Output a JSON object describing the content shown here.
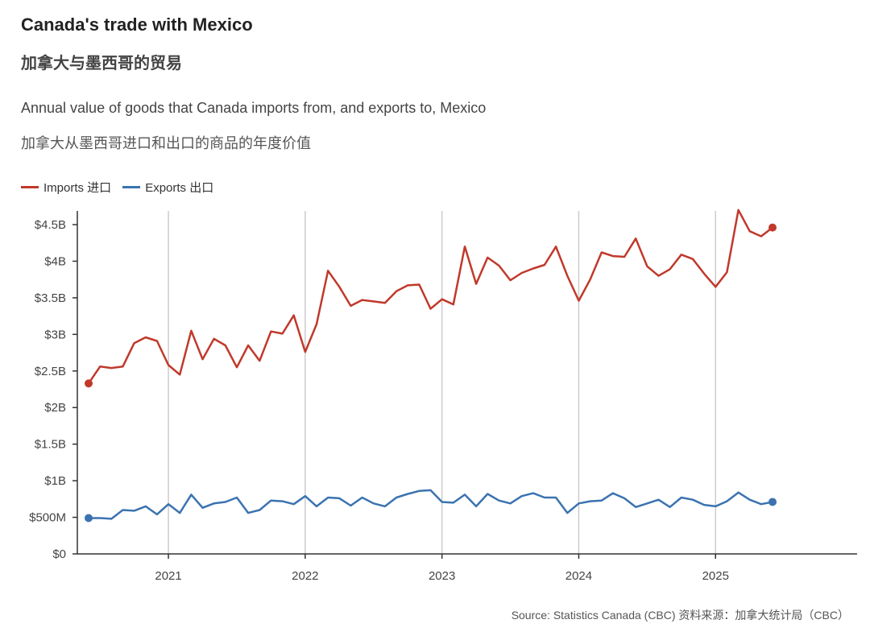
{
  "header": {
    "title": "Canada's trade with Mexico",
    "title_cn": "加拿大与墨西哥的贸易",
    "subtitle": "Annual value of goods that Canada imports from, and exports to, Mexico",
    "subtitle_cn": "加拿大从墨西哥进口和出口的商品的年度价值"
  },
  "legend": {
    "imports": "Imports 进口",
    "exports": "Exports 出口"
  },
  "source": "Source: Statistics Canada (CBC)  资料来源：加拿大统计局（CBC）",
  "colors": {
    "imports": "#c0392b",
    "exports": "#3b73b0"
  },
  "chart_data": {
    "type": "line",
    "x_start": "2020-06",
    "x_end": "2025-06",
    "x_ticks": [
      "2021",
      "2022",
      "2023",
      "2024",
      "2025"
    ],
    "y_ticks": [
      "$0",
      "$500M",
      "$1B",
      "$1.5B",
      "$2B",
      "$2.5B",
      "$3B",
      "$3.5B",
      "$4B",
      "$4.5B"
    ],
    "ylim": [
      0,
      4.5
    ],
    "y_unit": "billion CAD",
    "vertical_grid": true,
    "legend_position": "top-left",
    "series": [
      {
        "name": "Imports 进口",
        "values": [
          2.33,
          2.56,
          2.54,
          2.56,
          2.88,
          2.96,
          2.91,
          2.58,
          2.45,
          3.05,
          2.66,
          2.94,
          2.85,
          2.55,
          2.85,
          2.64,
          3.04,
          3.01,
          3.26,
          2.76,
          3.14,
          3.87,
          3.65,
          3.39,
          3.47,
          3.45,
          3.43,
          3.59,
          3.67,
          3.68,
          3.35,
          3.48,
          3.41,
          4.2,
          3.69,
          4.05,
          3.94,
          3.74,
          3.84,
          3.9,
          3.95,
          4.2,
          3.8,
          3.46,
          3.75,
          4.12,
          4.07,
          4.06,
          4.31,
          3.93,
          3.8,
          3.89,
          4.09,
          4.03,
          3.83,
          3.65,
          3.85,
          4.7,
          4.41,
          4.34,
          4.46
        ]
      },
      {
        "name": "Exports 出口",
        "values": [
          0.49,
          0.49,
          0.48,
          0.6,
          0.59,
          0.65,
          0.54,
          0.68,
          0.56,
          0.81,
          0.63,
          0.69,
          0.71,
          0.77,
          0.56,
          0.6,
          0.73,
          0.72,
          0.68,
          0.79,
          0.65,
          0.77,
          0.76,
          0.66,
          0.77,
          0.69,
          0.65,
          0.77,
          0.82,
          0.86,
          0.87,
          0.71,
          0.7,
          0.81,
          0.65,
          0.82,
          0.73,
          0.69,
          0.79,
          0.83,
          0.77,
          0.77,
          0.56,
          0.69,
          0.72,
          0.73,
          0.83,
          0.76,
          0.64,
          0.69,
          0.74,
          0.64,
          0.77,
          0.74,
          0.67,
          0.65,
          0.72,
          0.84,
          0.74,
          0.68,
          0.71
        ]
      }
    ]
  }
}
